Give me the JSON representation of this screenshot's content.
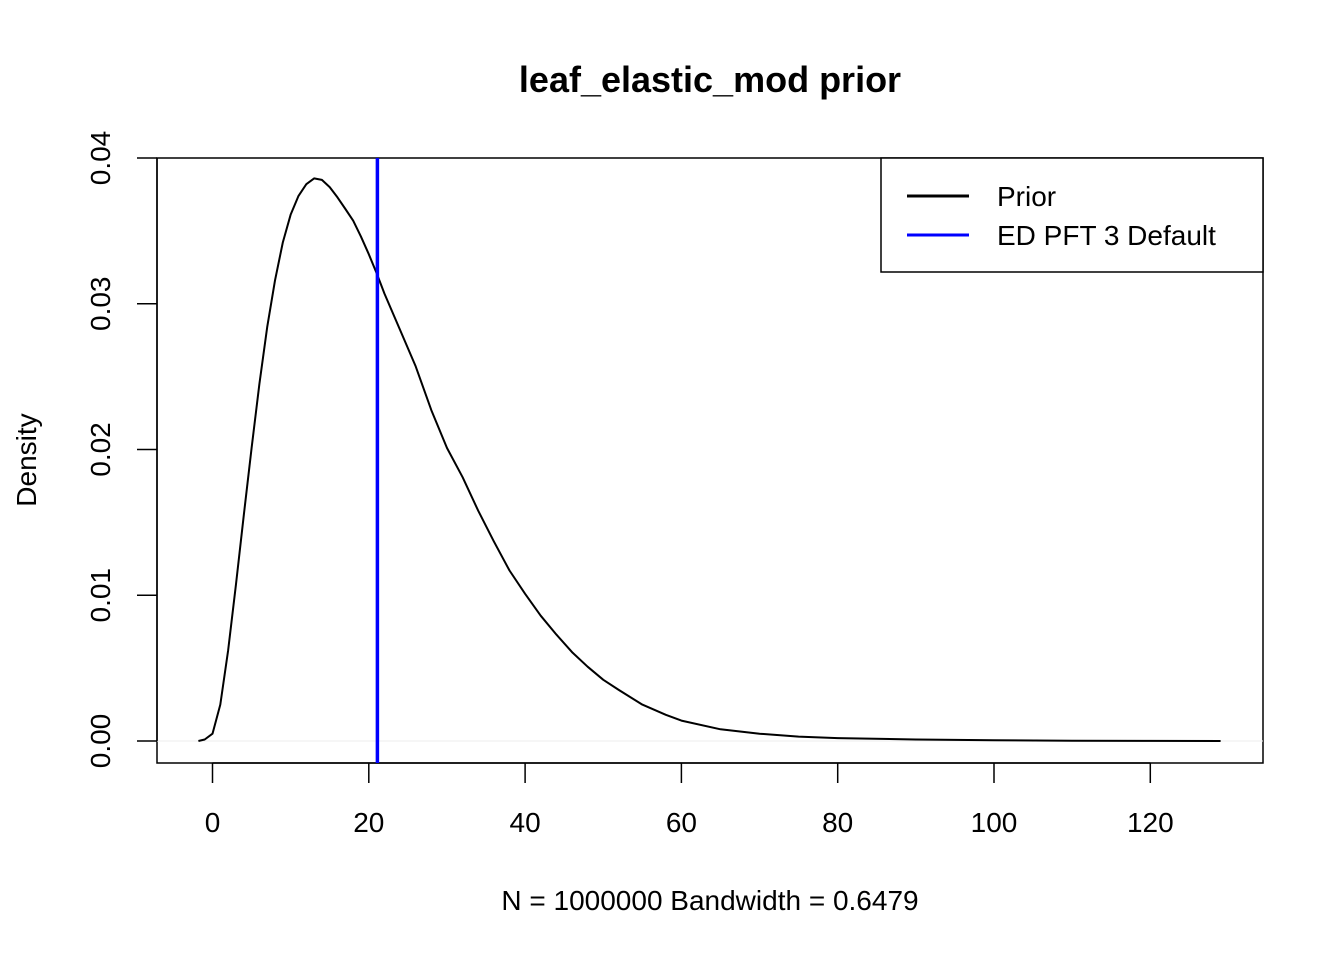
{
  "chart_data": {
    "type": "line",
    "title": "leaf_elastic_mod prior",
    "xlabel": "N = 1000000   Bandwidth = 0.6479",
    "ylabel": "Density",
    "xlim": [
      -2,
      129
    ],
    "ylim": [
      0,
      0.04
    ],
    "x_ticks": [
      "0",
      "20",
      "40",
      "60",
      "80",
      "100",
      "120"
    ],
    "y_ticks": [
      "0.00",
      "0.01",
      "0.02",
      "0.03",
      "0.04"
    ],
    "grid": false,
    "legend_position": "top-right",
    "series": [
      {
        "name": "Prior",
        "color": "#000000",
        "x": [
          -1.8,
          -1,
          0,
          1,
          2,
          3,
          4,
          5,
          6,
          7,
          8,
          9,
          10,
          11,
          12,
          13,
          14,
          15,
          16,
          17,
          18,
          19,
          20,
          21,
          22,
          24,
          26,
          28,
          30,
          32,
          34,
          36,
          38,
          40,
          42,
          44,
          46,
          48,
          50,
          52,
          55,
          58,
          60,
          65,
          70,
          75,
          80,
          90,
          100,
          110,
          120,
          129
        ],
        "y": [
          0.0,
          0.0001,
          0.0005,
          0.0025,
          0.0062,
          0.0107,
          0.0155,
          0.0201,
          0.0245,
          0.0284,
          0.0316,
          0.0342,
          0.0361,
          0.0374,
          0.0382,
          0.0386,
          0.0385,
          0.038,
          0.0373,
          0.0365,
          0.0357,
          0.0346,
          0.0334,
          0.0321,
          0.0307,
          0.0282,
          0.0257,
          0.0227,
          0.0201,
          0.0181,
          0.0158,
          0.0137,
          0.0117,
          0.0101,
          0.0086,
          0.0073,
          0.0061,
          0.0051,
          0.0042,
          0.0035,
          0.0025,
          0.0018,
          0.0014,
          0.0008,
          0.0005,
          0.0003,
          0.0002,
          0.0001,
          5e-05,
          2e-05,
          1e-05,
          0.0
        ]
      },
      {
        "name": "ED PFT 3 Default",
        "color": "#0000ff",
        "type": "vline",
        "x_value": 21.1
      }
    ]
  }
}
